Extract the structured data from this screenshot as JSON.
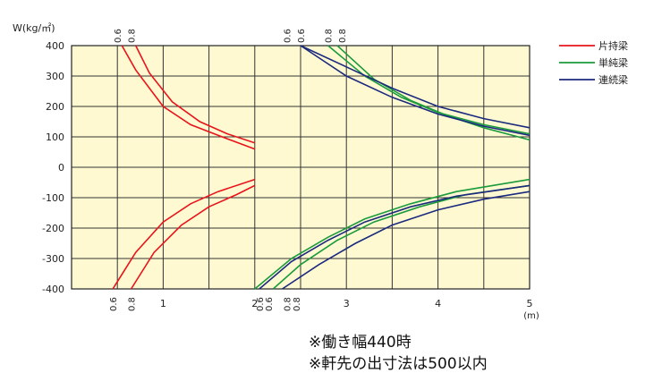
{
  "chart_data": {
    "type": "line",
    "ylabel": "W(kg/㎡)",
    "xunit": "(m)",
    "xlim": [
      0,
      5
    ],
    "ylim": [
      -400,
      400
    ],
    "x_ticks": [
      {
        "v": 1,
        "label": "1"
      },
      {
        "v": 2,
        "label": "2"
      },
      {
        "v": 3,
        "label": "3"
      },
      {
        "v": 4,
        "label": "4"
      },
      {
        "v": 5,
        "label": "5"
      }
    ],
    "y_ticks": [
      {
        "v": 400,
        "label": "400"
      },
      {
        "v": 300,
        "label": "300"
      },
      {
        "v": 200,
        "label": "200"
      },
      {
        "v": 100,
        "label": "100"
      },
      {
        "v": 0,
        "label": "0"
      },
      {
        "v": -100,
        "label": "-100"
      },
      {
        "v": -200,
        "label": "-200"
      },
      {
        "v": -300,
        "label": "-300"
      },
      {
        "v": -400,
        "label": "-400"
      }
    ],
    "grid": true,
    "background_color": "#fff9d2",
    "legend_position": "right",
    "top_annotations": [
      {
        "x": 0.5,
        "label": "0.6"
      },
      {
        "x": 0.65,
        "label": "0.8"
      },
      {
        "x": 2.35,
        "label": "0.6"
      },
      {
        "x": 2.5,
        "label": "0.6"
      },
      {
        "x": 2.8,
        "label": "0.8"
      },
      {
        "x": 2.95,
        "label": "0.8"
      }
    ],
    "bottom_annotations": [
      {
        "x": 0.45,
        "label": "0.6"
      },
      {
        "x": 0.65,
        "label": "0.8"
      },
      {
        "x": 2.05,
        "label": "0.6"
      },
      {
        "x": 2.15,
        "label": "0.6"
      },
      {
        "x": 2.35,
        "label": "0.8"
      },
      {
        "x": 2.45,
        "label": "0.8"
      }
    ],
    "series": [
      {
        "name": "片持梁",
        "color": "#e8141b",
        "lines": [
          [
            [
              0.55,
              400
            ],
            [
              0.7,
              320
            ],
            [
              1.0,
              200
            ],
            [
              1.3,
              140
            ],
            [
              1.6,
              105
            ],
            [
              2.0,
              60
            ]
          ],
          [
            [
              0.7,
              400
            ],
            [
              0.85,
              310
            ],
            [
              1.1,
              215
            ],
            [
              1.4,
              150
            ],
            [
              1.7,
              110
            ],
            [
              2.0,
              80
            ]
          ],
          [
            [
              0.45,
              -400
            ],
            [
              0.7,
              -280
            ],
            [
              1.0,
              -180
            ],
            [
              1.3,
              -120
            ],
            [
              1.6,
              -80
            ],
            [
              2.0,
              -40
            ]
          ],
          [
            [
              0.65,
              -400
            ],
            [
              0.9,
              -280
            ],
            [
              1.2,
              -190
            ],
            [
              1.5,
              -130
            ],
            [
              1.8,
              -90
            ],
            [
              2.0,
              -60
            ]
          ]
        ]
      },
      {
        "name": "単純梁",
        "color": "#1a9b3c",
        "lines": [
          [
            [
              2.8,
              400
            ],
            [
              3.2,
              300
            ],
            [
              3.6,
              230
            ],
            [
              4.0,
              180
            ],
            [
              4.5,
              140
            ],
            [
              5.0,
              110
            ]
          ],
          [
            [
              2.9,
              400
            ],
            [
              3.3,
              290
            ],
            [
              3.7,
              220
            ],
            [
              4.1,
              170
            ],
            [
              4.5,
              130
            ],
            [
              5.0,
              90
            ]
          ],
          [
            [
              2.0,
              -400
            ],
            [
              2.4,
              -300
            ],
            [
              2.8,
              -230
            ],
            [
              3.2,
              -170
            ],
            [
              3.7,
              -120
            ],
            [
              4.2,
              -80
            ],
            [
              5.0,
              -40
            ]
          ],
          [
            [
              2.2,
              -400
            ],
            [
              2.5,
              -320
            ],
            [
              2.9,
              -240
            ],
            [
              3.3,
              -180
            ],
            [
              3.8,
              -130
            ],
            [
              4.3,
              -90
            ],
            [
              5.0,
              -60
            ]
          ]
        ]
      },
      {
        "name": "連続梁",
        "color": "#1b2a7e",
        "lines": [
          [
            [
              2.5,
              400
            ],
            [
              3.0,
              330
            ],
            [
              3.5,
              260
            ],
            [
              4.0,
              200
            ],
            [
              4.5,
              160
            ],
            [
              5.0,
              130
            ]
          ],
          [
            [
              2.5,
              400
            ],
            [
              3.0,
              300
            ],
            [
              3.5,
              230
            ],
            [
              4.0,
              175
            ],
            [
              4.5,
              135
            ],
            [
              5.0,
              105
            ]
          ],
          [
            [
              2.05,
              -400
            ],
            [
              2.4,
              -310
            ],
            [
              2.8,
              -240
            ],
            [
              3.2,
              -180
            ],
            [
              3.7,
              -130
            ],
            [
              4.2,
              -95
            ],
            [
              5.0,
              -60
            ]
          ],
          [
            [
              2.3,
              -400
            ],
            [
              2.7,
              -320
            ],
            [
              3.1,
              -250
            ],
            [
              3.5,
              -190
            ],
            [
              4.0,
              -140
            ],
            [
              4.5,
              -105
            ],
            [
              5.0,
              -80
            ]
          ]
        ]
      }
    ]
  },
  "notes": {
    "line1": "※働き幅440時",
    "line2": "※軒先の出寸法は500以内"
  }
}
